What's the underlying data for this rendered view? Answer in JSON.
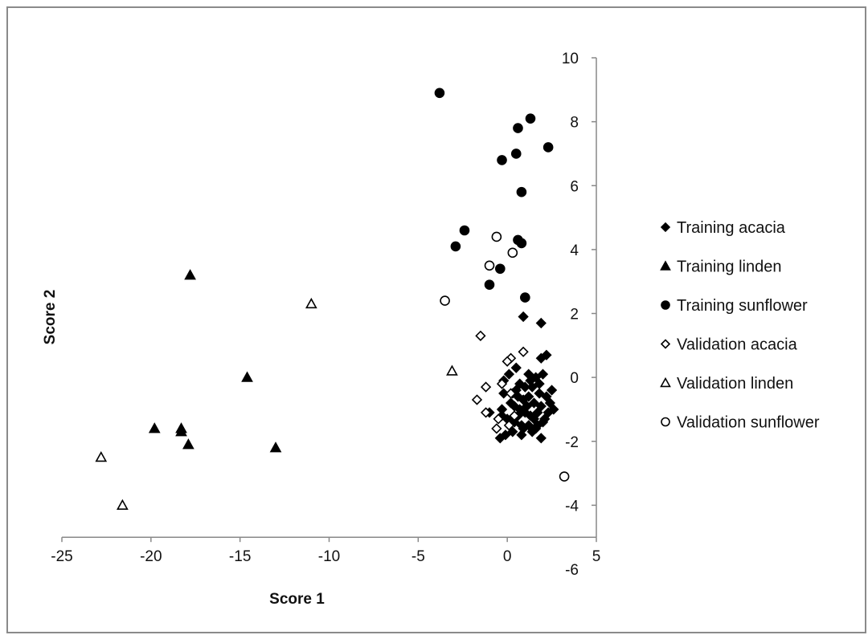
{
  "chart_data": {
    "type": "scatter",
    "title": "",
    "xlabel": "Score 1",
    "ylabel": "Score 2",
    "xlim": [
      -25,
      5
    ],
    "ylim": [
      -6,
      10
    ],
    "xticks": [
      -25,
      -20,
      -15,
      -10,
      -5,
      0,
      5
    ],
    "yticks": [
      -6,
      -4,
      -2,
      0,
      2,
      4,
      6,
      8,
      10
    ],
    "grid": false,
    "legend_position": "right",
    "series": [
      {
        "name": "Training acacia",
        "marker": "diamond",
        "filled": true,
        "color": "#000000",
        "points": [
          [
            0.9,
            1.9
          ],
          [
            1.9,
            1.7
          ],
          [
            1.9,
            0.6
          ],
          [
            2.2,
            0.7
          ],
          [
            0.5,
            0.3
          ],
          [
            0.1,
            0.1
          ],
          [
            -0.2,
            -0.1
          ],
          [
            1.2,
            0.1
          ],
          [
            1.6,
            0.0
          ],
          [
            2.0,
            0.1
          ],
          [
            2.5,
            -0.4
          ],
          [
            0.7,
            -0.2
          ],
          [
            1.0,
            -0.3
          ],
          [
            1.4,
            -0.3
          ],
          [
            1.8,
            -0.2
          ],
          [
            2.2,
            -0.6
          ],
          [
            0.3,
            -0.5
          ],
          [
            0.6,
            -0.6
          ],
          [
            0.9,
            -0.7
          ],
          [
            1.2,
            -0.6
          ],
          [
            1.5,
            -0.8
          ],
          [
            1.9,
            -0.9
          ],
          [
            2.4,
            -0.8
          ],
          [
            2.6,
            -1.0
          ],
          [
            0.4,
            -0.9
          ],
          [
            0.7,
            -1.0
          ],
          [
            1.0,
            -1.1
          ],
          [
            1.3,
            -1.2
          ],
          [
            1.7,
            -1.1
          ],
          [
            2.1,
            -1.3
          ],
          [
            -0.3,
            -1.0
          ],
          [
            0.0,
            -1.3
          ],
          [
            0.4,
            -1.4
          ],
          [
            0.8,
            -1.5
          ],
          [
            1.2,
            -1.5
          ],
          [
            1.6,
            -1.6
          ],
          [
            2.0,
            -1.4
          ],
          [
            -0.1,
            -1.8
          ],
          [
            0.3,
            -1.7
          ],
          [
            0.8,
            -1.8
          ],
          [
            1.4,
            -1.7
          ],
          [
            1.9,
            -1.9
          ],
          [
            -0.4,
            -1.9
          ],
          [
            1.1,
            -0.9
          ],
          [
            0.6,
            -1.2
          ],
          [
            1.5,
            -1.3
          ],
          [
            0.9,
            -1.6
          ],
          [
            1.8,
            -0.5
          ],
          [
            -0.2,
            -0.5
          ],
          [
            0.2,
            -0.8
          ],
          [
            -1.0,
            -1.1
          ],
          [
            -0.3,
            -1.2
          ],
          [
            1.3,
            -0.1
          ],
          [
            0.5,
            -0.4
          ],
          [
            1.7,
            -1.5
          ],
          [
            2.3,
            -1.1
          ]
        ]
      },
      {
        "name": "Training linden",
        "marker": "triangle",
        "filled": true,
        "color": "#000000",
        "points": [
          [
            -17.8,
            3.2
          ],
          [
            -14.6,
            0.0
          ],
          [
            -19.8,
            -1.6
          ],
          [
            -18.3,
            -1.6
          ],
          [
            -18.3,
            -1.7
          ],
          [
            -17.9,
            -2.1
          ],
          [
            -13.0,
            -2.2
          ]
        ]
      },
      {
        "name": "Training sunflower",
        "marker": "circle",
        "filled": true,
        "color": "#000000",
        "points": [
          [
            -3.8,
            8.9
          ],
          [
            1.3,
            8.1
          ],
          [
            0.6,
            7.8
          ],
          [
            2.3,
            7.2
          ],
          [
            0.5,
            7.0
          ],
          [
            -0.3,
            6.8
          ],
          [
            0.8,
            5.8
          ],
          [
            -2.4,
            4.6
          ],
          [
            0.6,
            4.3
          ],
          [
            0.8,
            4.2
          ],
          [
            -2.9,
            4.1
          ],
          [
            -0.4,
            3.4
          ],
          [
            -1.0,
            2.9
          ],
          [
            1.0,
            2.5
          ]
        ]
      },
      {
        "name": "Validation acacia",
        "marker": "diamond",
        "filled": false,
        "color": "#000000",
        "points": [
          [
            -1.5,
            1.3
          ],
          [
            0.9,
            0.8
          ],
          [
            0.2,
            0.6
          ],
          [
            0.0,
            0.5
          ],
          [
            -1.2,
            -0.3
          ],
          [
            -0.3,
            -0.2
          ],
          [
            -1.7,
            -0.7
          ],
          [
            -1.2,
            -1.1
          ],
          [
            -0.5,
            -1.3
          ],
          [
            -0.6,
            -1.6
          ],
          [
            0.1,
            -1.5
          ],
          [
            0.4,
            -1.2
          ],
          [
            0.2,
            -0.5
          ]
        ]
      },
      {
        "name": "Validation linden",
        "marker": "triangle",
        "filled": false,
        "color": "#000000",
        "points": [
          [
            -11.0,
            2.3
          ],
          [
            -3.1,
            0.2
          ],
          [
            -22.8,
            -2.5
          ],
          [
            -21.6,
            -4.0
          ]
        ]
      },
      {
        "name": "Validation sunflower",
        "marker": "circle",
        "filled": false,
        "color": "#000000",
        "points": [
          [
            -0.6,
            4.4
          ],
          [
            0.3,
            3.9
          ],
          [
            -1.0,
            3.5
          ],
          [
            -3.5,
            2.4
          ],
          [
            3.2,
            -3.1
          ]
        ]
      }
    ]
  }
}
